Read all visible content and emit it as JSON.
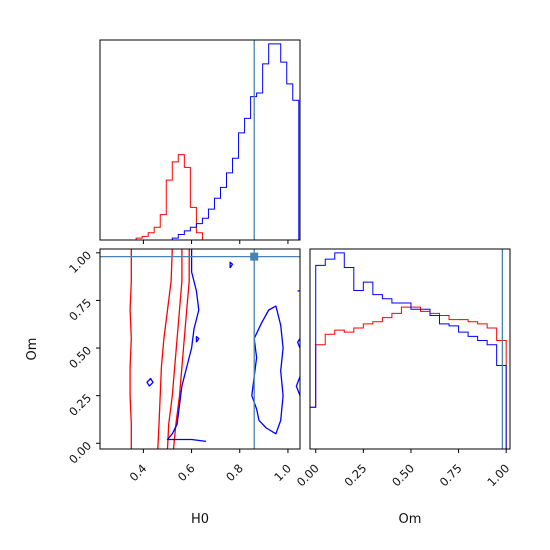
{
  "chart_data": {
    "type": "corner",
    "parameters": [
      "H0",
      "Om"
    ],
    "truth": {
      "H0": 0.86,
      "Om": 0.98
    },
    "truth_color": "#4682b4",
    "series_colors": {
      "red": "#ff0000",
      "blue": "#0000ff"
    },
    "panels": {
      "H0_hist": {
        "xlim": [
          0.22,
          1.05
        ],
        "x_ticks": [
          0.4,
          0.6,
          0.8,
          1.0
        ],
        "tick_labels_shown": false,
        "bin_edges": [
          0.22,
          0.245,
          0.27,
          0.295,
          0.32,
          0.345,
          0.37,
          0.395,
          0.42,
          0.445,
          0.47,
          0.495,
          0.52,
          0.545,
          0.57,
          0.595,
          0.62,
          0.645,
          0.67,
          0.695,
          0.72,
          0.745,
          0.77,
          0.795,
          0.82,
          0.845,
          0.87,
          0.895,
          0.92,
          0.945,
          0.97,
          0.995,
          1.02,
          1.045
        ],
        "red_counts": [
          0,
          0,
          0,
          0,
          0,
          0,
          1,
          2,
          4,
          7,
          14,
          33,
          43,
          47,
          40,
          18,
          4,
          0,
          0,
          0,
          0,
          0,
          0,
          0,
          0,
          0,
          0,
          0,
          0,
          0,
          0,
          0,
          0
        ],
        "blue_counts": [
          0,
          0,
          0,
          0,
          0,
          0,
          0,
          0,
          0,
          0,
          0,
          0,
          1,
          3,
          5,
          7,
          9,
          12,
          17,
          23,
          29,
          37,
          45,
          59,
          67,
          79,
          81,
          97,
          108,
          108,
          98,
          86,
          77
        ]
      },
      "Om_hist": {
        "xlim": [
          -0.03,
          1.02
        ],
        "x_ticks": [
          0.0,
          0.25,
          0.5,
          0.75,
          1.0
        ],
        "x_tick_labels": [
          "0.00",
          "0.25",
          "0.50",
          "0.75",
          "1.00"
        ],
        "bin_edges": [
          -0.03,
          0.0,
          0.05,
          0.1,
          0.15,
          0.2,
          0.25,
          0.3,
          0.35,
          0.4,
          0.45,
          0.5,
          0.55,
          0.6,
          0.65,
          0.7,
          0.75,
          0.8,
          0.85,
          0.9,
          0.95,
          1.0,
          1.02
        ],
        "red_counts": [
          20,
          50,
          55,
          57,
          56,
          58,
          60,
          61,
          63,
          65,
          68,
          68,
          66,
          65,
          64,
          62,
          62,
          61,
          60,
          58,
          52,
          0
        ],
        "blue_counts": [
          20,
          88,
          91,
          94,
          87,
          76,
          80,
          74,
          72,
          70,
          70,
          67,
          67,
          64,
          60,
          59,
          56,
          54,
          52,
          50,
          40,
          0
        ]
      },
      "H0_Om_2d": {
        "xlim": [
          0.22,
          1.05
        ],
        "ylim": [
          -0.03,
          1.02
        ],
        "x_ticks": [
          0.4,
          0.6,
          0.8,
          1.0
        ],
        "x_tick_labels": [
          "0.4",
          "0.6",
          "0.8",
          "1.0"
        ],
        "y_ticks": [
          0.0,
          0.25,
          0.5,
          0.75,
          1.0
        ],
        "y_tick_labels": [
          "0.00",
          "0.25",
          "0.50",
          "0.75",
          "1.00"
        ],
        "xlabel": "H0",
        "ylabel": "Om",
        "red_contours": [
          [
            [
              0.35,
              1.02
            ],
            [
              0.35,
              0.85
            ],
            [
              0.345,
              0.7
            ],
            [
              0.35,
              0.55
            ],
            [
              0.345,
              0.4
            ],
            [
              0.345,
              0.25
            ],
            [
              0.35,
              0.1
            ],
            [
              0.35,
              -0.03
            ]
          ],
          [
            [
              0.52,
              1.02
            ],
            [
              0.515,
              0.85
            ],
            [
              0.5,
              0.7
            ],
            [
              0.485,
              0.55
            ],
            [
              0.475,
              0.4
            ],
            [
              0.47,
              0.25
            ],
            [
              0.465,
              0.1
            ],
            [
              0.46,
              -0.03
            ]
          ],
          [
            [
              0.56,
              1.02
            ],
            [
              0.56,
              0.85
            ],
            [
              0.55,
              0.7
            ],
            [
              0.54,
              0.55
            ],
            [
              0.53,
              0.4
            ],
            [
              0.52,
              0.25
            ],
            [
              0.505,
              0.1
            ],
            [
              0.5,
              -0.03
            ]
          ],
          [
            [
              0.59,
              1.02
            ],
            [
              0.59,
              0.85
            ],
            [
              0.58,
              0.7
            ],
            [
              0.57,
              0.55
            ],
            [
              0.56,
              0.4
            ],
            [
              0.55,
              0.25
            ],
            [
              0.535,
              0.1
            ],
            [
              0.525,
              -0.03
            ]
          ]
        ],
        "blue_contours": [
          [
            [
              0.6,
              1.02
            ],
            [
              0.6,
              0.9
            ],
            [
              0.62,
              0.8
            ],
            [
              0.63,
              0.7
            ],
            [
              0.61,
              0.6
            ],
            [
              0.6,
              0.5
            ],
            [
              0.58,
              0.4
            ],
            [
              0.56,
              0.3
            ],
            [
              0.55,
              0.2
            ],
            [
              0.54,
              0.1
            ],
            [
              0.52,
              0.05
            ],
            [
              0.5,
              0.02
            ],
            [
              0.6,
              0.02
            ],
            [
              0.66,
              0.01
            ]
          ],
          [
            [
              0.87,
              0.18
            ],
            [
              0.85,
              0.25
            ],
            [
              0.86,
              0.35
            ],
            [
              0.87,
              0.45
            ],
            [
              0.86,
              0.55
            ],
            [
              0.89,
              0.63
            ],
            [
              0.92,
              0.7
            ],
            [
              0.95,
              0.72
            ],
            [
              0.97,
              0.62
            ],
            [
              0.98,
              0.5
            ],
            [
              0.97,
              0.38
            ],
            [
              0.98,
              0.25
            ],
            [
              0.97,
              0.12
            ],
            [
              0.95,
              0.05
            ],
            [
              0.91,
              0.08
            ],
            [
              0.88,
              0.12
            ],
            [
              0.87,
              0.18
            ]
          ],
          [
            [
              0.425,
              0.3
            ],
            [
              0.44,
              0.32
            ],
            [
              0.43,
              0.34
            ],
            [
              0.415,
              0.32
            ],
            [
              0.425,
              0.3
            ]
          ],
          [
            [
              0.62,
              0.53
            ],
            [
              0.63,
              0.55
            ],
            [
              0.62,
              0.56
            ],
            [
              0.62,
              0.53
            ]
          ],
          [
            [
              0.76,
              0.92
            ],
            [
              0.77,
              0.94
            ],
            [
              0.76,
              0.95
            ],
            [
              0.76,
              0.92
            ]
          ],
          [
            [
              1.05,
              0.8
            ],
            [
              1.04,
              0.8
            ]
          ],
          [
            [
              1.05,
              0.55
            ],
            [
              1.04,
              0.53
            ],
            [
              1.05,
              0.5
            ]
          ],
          [
            [
              1.05,
              0.35
            ],
            [
              1.035,
              0.3
            ],
            [
              1.05,
              0.25
            ]
          ]
        ]
      }
    }
  }
}
